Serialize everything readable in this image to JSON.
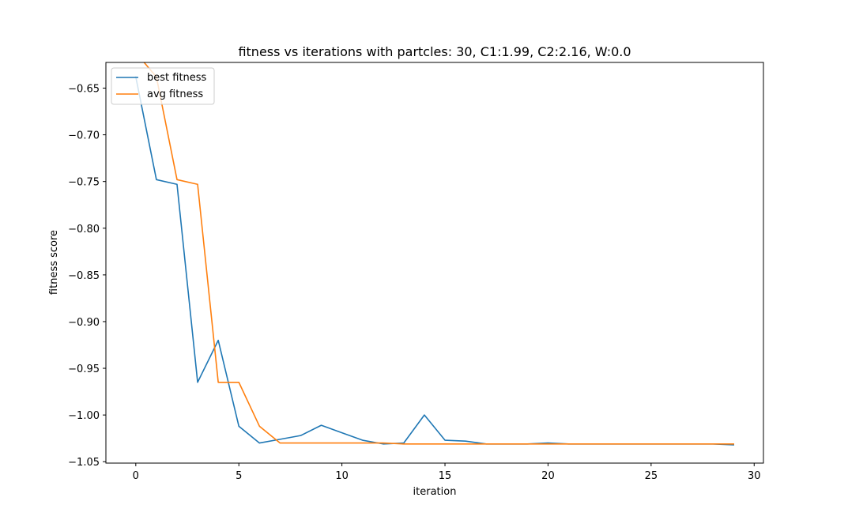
{
  "chart_data": {
    "type": "line",
    "title": "fitness vs iterations with partcles: 30, C1:1.99, C2:2.16, W:0.0",
    "xlabel": "iteration",
    "ylabel": "fitness score",
    "xlim": [
      -1.45,
      30.45
    ],
    "ylim": [
      -1.0515,
      -0.6225
    ],
    "xticks": [
      0,
      5,
      10,
      15,
      20,
      25,
      30
    ],
    "yticks": [
      -0.65,
      -0.7,
      -0.75,
      -0.8,
      -0.85,
      -0.9,
      -0.95,
      -1.0,
      -1.05
    ],
    "ytick_labels": [
      "−0.65",
      "−0.70",
      "−0.75",
      "−0.80",
      "−0.85",
      "−0.90",
      "−0.95",
      "−1.00",
      "−1.05"
    ],
    "legend_position": "top-left",
    "grid": false,
    "x": [
      0,
      1,
      2,
      3,
      4,
      5,
      6,
      7,
      8,
      9,
      10,
      11,
      12,
      13,
      14,
      15,
      16,
      17,
      18,
      19,
      20,
      21,
      22,
      23,
      24,
      25,
      26,
      27,
      28,
      29
    ],
    "series": [
      {
        "name": "best fitness",
        "color": "#1f77b4",
        "values": [
          -0.638,
          -0.748,
          -0.753,
          -0.965,
          -0.92,
          -1.012,
          -1.03,
          -1.026,
          -1.022,
          -1.011,
          -1.019,
          -1.027,
          -1.031,
          -1.03,
          -1.0,
          -1.027,
          -1.028,
          -1.031,
          -1.031,
          -1.031,
          -1.03,
          -1.031,
          -1.031,
          -1.031,
          -1.031,
          -1.031,
          -1.031,
          -1.031,
          -1.031,
          -1.032
        ]
      },
      {
        "name": "avg fitness",
        "color": "#ff7f0e",
        "values": [
          -0.612,
          -0.638,
          -0.748,
          -0.753,
          -0.965,
          -0.965,
          -1.012,
          -1.03,
          -1.03,
          -1.03,
          -1.03,
          -1.03,
          -1.03,
          -1.031,
          -1.031,
          -1.031,
          -1.031,
          -1.031,
          -1.031,
          -1.031,
          -1.031,
          -1.031,
          -1.031,
          -1.031,
          -1.031,
          -1.031,
          -1.031,
          -1.031,
          -1.031,
          -1.031
        ]
      }
    ]
  }
}
